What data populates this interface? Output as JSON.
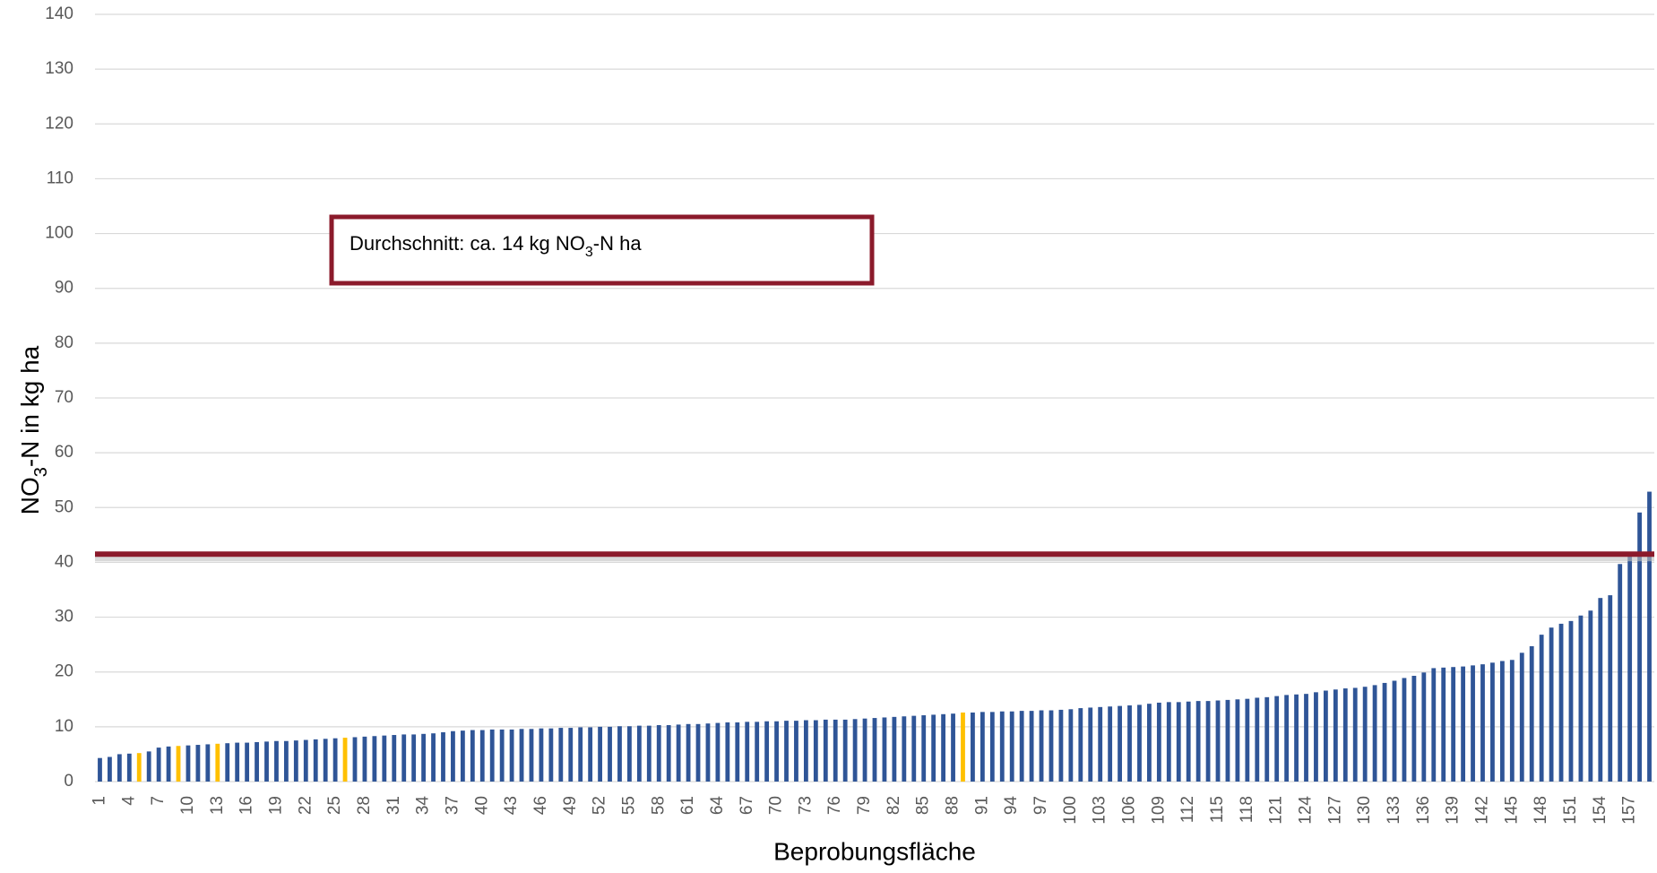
{
  "chart_data": {
    "type": "bar",
    "ylabel_parts": [
      "NO",
      "3",
      "-N in kg ha"
    ],
    "xlabel": "Beprobungsfläche",
    "annotation_parts": [
      "Durchschnitt:  ca. 14 kg NO",
      "3",
      "-N ha"
    ],
    "annotation_color": "#8b1a2b",
    "ref_line": {
      "value": 41.5,
      "color": "#8b1a2b"
    },
    "ylim": [
      0,
      140
    ],
    "yticks": [
      0,
      10,
      20,
      30,
      40,
      50,
      60,
      70,
      80,
      90,
      100,
      110,
      120,
      130,
      140
    ],
    "grid": true,
    "categories": [
      "1",
      null,
      null,
      "4",
      null,
      null,
      "7",
      null,
      null,
      "10",
      null,
      null,
      "13",
      null,
      null,
      "16",
      null,
      null,
      "19",
      null,
      null,
      "22",
      null,
      null,
      "25",
      null,
      null,
      "28",
      null,
      null,
      "31",
      null,
      null,
      "34",
      null,
      null,
      "37",
      null,
      null,
      "40",
      null,
      null,
      "43",
      null,
      null,
      "46",
      null,
      null,
      "49",
      null,
      null,
      "52",
      null,
      null,
      "55",
      null,
      null,
      "58",
      null,
      null,
      "61",
      null,
      null,
      "64",
      null,
      null,
      "67",
      null,
      null,
      "70",
      null,
      null,
      "73",
      null,
      null,
      "76",
      null,
      null,
      "79",
      null,
      null,
      "82",
      null,
      null,
      "85",
      null,
      null,
      "88",
      null,
      null,
      "91",
      null,
      null,
      "94",
      null,
      null,
      "97",
      null,
      null,
      "100",
      null,
      null,
      "103",
      null,
      null,
      "106",
      null,
      null,
      "109",
      null,
      null,
      "112",
      null,
      null,
      "115",
      null,
      null,
      "118",
      null,
      null,
      "121",
      null,
      null,
      "124",
      null,
      null,
      "127",
      null,
      null,
      "130",
      null,
      null,
      "133",
      null,
      null,
      "136",
      null,
      null,
      "139",
      null,
      null,
      "142",
      null,
      null,
      "145",
      null,
      null,
      "148",
      null,
      null,
      "151",
      null,
      null,
      "154",
      null,
      null,
      "157",
      null,
      null
    ],
    "values": [
      4.3,
      4.5,
      5.0,
      5.1,
      5.2,
      5.5,
      6.2,
      6.4,
      6.5,
      6.6,
      6.7,
      6.8,
      6.9,
      7.0,
      7.1,
      7.1,
      7.2,
      7.3,
      7.4,
      7.4,
      7.5,
      7.6,
      7.7,
      7.8,
      7.9,
      8.0,
      8.1,
      8.2,
      8.3,
      8.4,
      8.5,
      8.6,
      8.6,
      8.7,
      8.8,
      9.0,
      9.2,
      9.3,
      9.4,
      9.4,
      9.5,
      9.5,
      9.5,
      9.6,
      9.6,
      9.7,
      9.7,
      9.8,
      9.8,
      9.9,
      9.9,
      10.0,
      10.0,
      10.1,
      10.1,
      10.2,
      10.2,
      10.3,
      10.3,
      10.4,
      10.5,
      10.5,
      10.6,
      10.7,
      10.8,
      10.8,
      10.9,
      10.9,
      11.0,
      11.0,
      11.1,
      11.1,
      11.2,
      11.2,
      11.3,
      11.3,
      11.3,
      11.4,
      11.5,
      11.6,
      11.7,
      11.8,
      11.9,
      12.0,
      12.1,
      12.2,
      12.3,
      12.4,
      12.6,
      12.6,
      12.7,
      12.7,
      12.8,
      12.8,
      12.9,
      12.9,
      13.0,
      13.0,
      13.1,
      13.2,
      13.4,
      13.5,
      13.6,
      13.7,
      13.8,
      13.9,
      14.0,
      14.2,
      14.4,
      14.5,
      14.5,
      14.6,
      14.7,
      14.7,
      14.8,
      14.9,
      15.0,
      15.1,
      15.3,
      15.4,
      15.6,
      15.8,
      15.9,
      16.0,
      16.3,
      16.6,
      16.8,
      17.0,
      17.1,
      17.3,
      17.6,
      18.0,
      18.4,
      18.9,
      19.3,
      19.9,
      20.7,
      20.8,
      20.9,
      21.0,
      21.2,
      21.4,
      21.7,
      22.0,
      22.2,
      23.5,
      24.7,
      26.8,
      28.1,
      28.8,
      29.3,
      30.3,
      31.2,
      33.5,
      34.0,
      39.7,
      41.5,
      49.1,
      52.9
    ],
    "colors": [
      "#2f5597",
      "#2f5597",
      "#2f5597",
      "#2f5597",
      "#ffc000",
      "#2f5597",
      "#2f5597",
      "#2f5597",
      "#ffc000",
      "#2f5597",
      "#2f5597",
      "#2f5597",
      "#ffc000",
      "#2f5597",
      "#2f5597",
      "#2f5597",
      "#2f5597",
      "#2f5597",
      "#2f5597",
      "#2f5597",
      "#2f5597",
      "#2f5597",
      "#2f5597",
      "#2f5597",
      "#2f5597",
      "#ffc000",
      "#2f5597",
      "#2f5597",
      "#2f5597",
      "#2f5597",
      "#2f5597",
      "#2f5597",
      "#2f5597",
      "#2f5597",
      "#2f5597",
      "#2f5597",
      "#2f5597",
      "#2f5597",
      "#2f5597",
      "#2f5597",
      "#2f5597",
      "#2f5597",
      "#2f5597",
      "#2f5597",
      "#2f5597",
      "#2f5597",
      "#2f5597",
      "#2f5597",
      "#2f5597",
      "#2f5597",
      "#2f5597",
      "#2f5597",
      "#2f5597",
      "#2f5597",
      "#2f5597",
      "#2f5597",
      "#2f5597",
      "#2f5597",
      "#2f5597",
      "#2f5597",
      "#2f5597",
      "#2f5597",
      "#2f5597",
      "#2f5597",
      "#2f5597",
      "#2f5597",
      "#2f5597",
      "#2f5597",
      "#2f5597",
      "#2f5597",
      "#2f5597",
      "#2f5597",
      "#2f5597",
      "#2f5597",
      "#2f5597",
      "#2f5597",
      "#2f5597",
      "#2f5597",
      "#2f5597",
      "#2f5597",
      "#2f5597",
      "#2f5597",
      "#2f5597",
      "#2f5597",
      "#2f5597",
      "#2f5597",
      "#2f5597",
      "#2f5597",
      "#ffc000",
      "#2f5597",
      "#2f5597",
      "#2f5597",
      "#2f5597",
      "#2f5597",
      "#2f5597",
      "#2f5597",
      "#2f5597",
      "#2f5597",
      "#2f5597",
      "#2f5597",
      "#2f5597",
      "#2f5597",
      "#2f5597",
      "#2f5597",
      "#2f5597",
      "#2f5597",
      "#2f5597",
      "#2f5597",
      "#2f5597",
      "#2f5597",
      "#2f5597",
      "#2f5597",
      "#2f5597",
      "#2f5597",
      "#2f5597",
      "#2f5597",
      "#2f5597",
      "#2f5597",
      "#2f5597",
      "#2f5597",
      "#2f5597",
      "#2f5597",
      "#2f5597",
      "#2f5597",
      "#2f5597",
      "#2f5597",
      "#2f5597",
      "#2f5597",
      "#2f5597",
      "#2f5597",
      "#2f5597",
      "#2f5597",
      "#2f5597",
      "#2f5597",
      "#2f5597",
      "#2f5597",
      "#2f5597",
      "#2f5597",
      "#2f5597",
      "#2f5597",
      "#2f5597",
      "#2f5597",
      "#2f5597",
      "#2f5597",
      "#2f5597",
      "#2f5597",
      "#2f5597",
      "#2f5597",
      "#2f5597",
      "#2f5597",
      "#2f5597",
      "#2f5597",
      "#2f5597",
      "#2f5597",
      "#2f5597",
      "#2f5597",
      "#2f5597",
      "#2f5597",
      "#2f5597"
    ]
  }
}
